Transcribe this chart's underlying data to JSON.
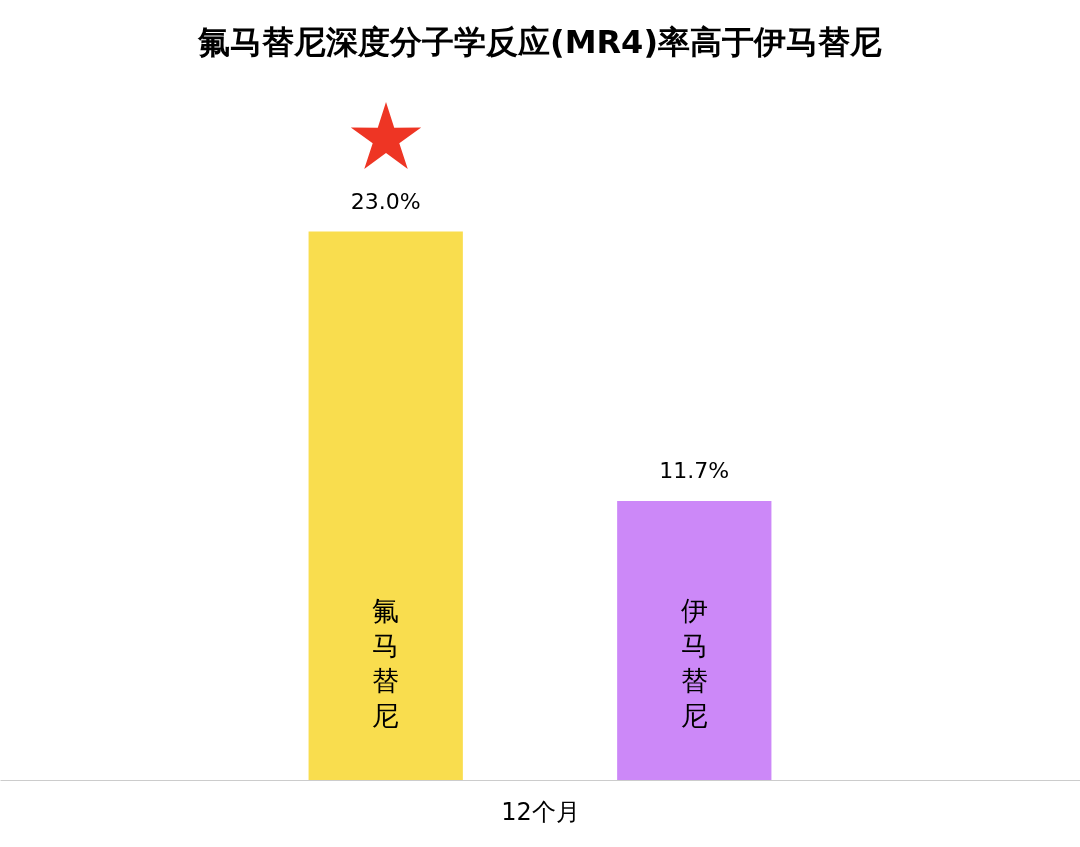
{
  "chart_data": {
    "type": "bar",
    "title": "氟马替尼深度分子学反应(MR4)率高于伊马替尼",
    "xlabel": "12个月",
    "categories": [
      "氟马替尼",
      "伊马替尼"
    ],
    "values": [
      23.0,
      11.7
    ],
    "colors": [
      "#f9dd4e",
      "#cc88f8"
    ],
    "value_labels": [
      "23.0%",
      "11.7%"
    ]
  }
}
